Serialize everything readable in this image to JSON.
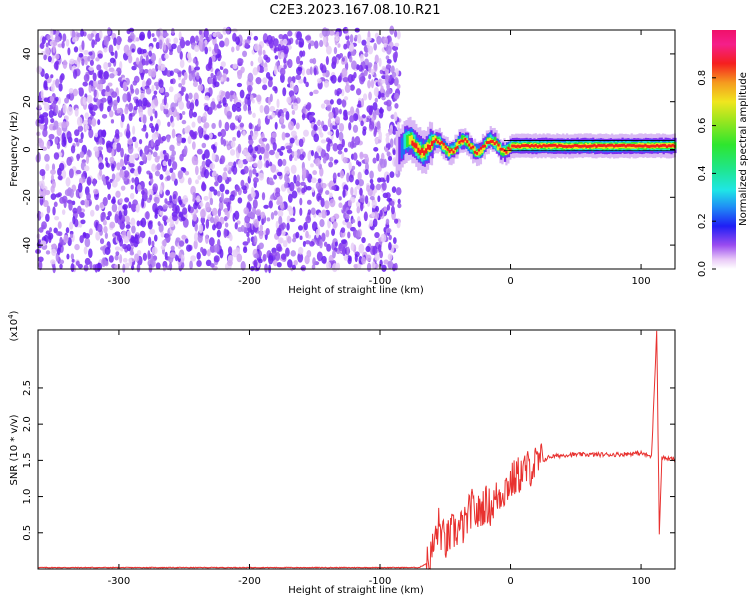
{
  "figure_title": "C2E3.2023.167.08.10.R21",
  "colors": {
    "snr_line": "#e8312f",
    "axis": "#000000",
    "background": "#ffffff"
  },
  "chart_data": [
    {
      "type": "heatmap",
      "xlabel": "Height of straight line (km)",
      "ylabel": "Frequency (Hz)",
      "xlim": [
        -362,
        126
      ],
      "ylim": [
        -50,
        50
      ],
      "x_ticks": [
        -300,
        -200,
        -100,
        0,
        100
      ],
      "y_ticks": [
        -40,
        -20,
        0,
        20,
        40
      ],
      "colormap": "gist_ncar_r (white-violet-blue-cyan-green-yellow-red-magenta)",
      "colorbar": {
        "label": "Normalized spectral amplitude",
        "range": [
          0.0,
          1.0
        ],
        "ticks": [
          0.0,
          0.2,
          0.4,
          0.6,
          0.8
        ]
      },
      "description_features": {
        "noise_region_x": [
          -362,
          -85
        ],
        "signal_frequency_hz": 1.5,
        "signal_start_x": -88
      }
    },
    {
      "type": "line",
      "xlabel": "Height of straight line (km)",
      "ylabel": "SNR (10 * v/v)",
      "y_scale_label": "(x10",
      "y_scale_exponent": "4",
      "xlim": [
        -362,
        126
      ],
      "ylim": [
        0,
        3.3
      ],
      "x_ticks": [
        -300,
        -200,
        -100,
        0,
        100
      ],
      "y_ticks": [
        0.5,
        1.0,
        1.5,
        2.0,
        2.5
      ],
      "series": [
        {
          "x": [
            -362,
            -70,
            -62,
            -55,
            -50,
            -45,
            -40,
            -35,
            -30,
            -25,
            -20,
            -15,
            -10,
            -5,
            0,
            10,
            20,
            30,
            45,
            60,
            80,
            100,
            108,
            112,
            114,
            116,
            120,
            126
          ],
          "y": [
            0.02,
            0.02,
            0.1,
            0.6,
            0.35,
            0.5,
            0.55,
            0.6,
            0.85,
            0.75,
            0.9,
            0.85,
            1.0,
            1.1,
            1.2,
            1.35,
            1.45,
            1.55,
            1.58,
            1.58,
            1.58,
            1.6,
            1.55,
            3.3,
            0.5,
            1.55,
            1.52,
            1.52
          ]
        }
      ]
    }
  ]
}
